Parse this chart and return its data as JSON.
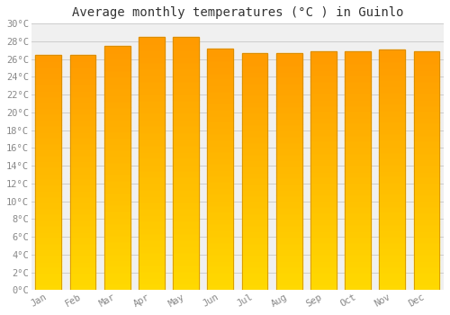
{
  "title": "Average monthly temperatures (°C ) in Guinlo",
  "months": [
    "Jan",
    "Feb",
    "Mar",
    "Apr",
    "May",
    "Jun",
    "Jul",
    "Aug",
    "Sep",
    "Oct",
    "Nov",
    "Dec"
  ],
  "temperatures": [
    26.5,
    26.5,
    27.5,
    28.5,
    28.5,
    27.2,
    26.7,
    26.7,
    26.9,
    26.9,
    27.1,
    26.9
  ],
  "bar_color_main": "#FFA500",
  "bar_color_light": "#FFD700",
  "bar_edge_color": "#CC8800",
  "background_color": "#FFFFFF",
  "plot_bg_color": "#F0F0F0",
  "grid_color": "#CCCCCC",
  "ylim": [
    0,
    30
  ],
  "yticks": [
    0,
    2,
    4,
    6,
    8,
    10,
    12,
    14,
    16,
    18,
    20,
    22,
    24,
    26,
    28,
    30
  ],
  "tick_label_color": "#888888",
  "title_color": "#333333",
  "title_fontsize": 10,
  "tick_fontsize": 7.5,
  "bar_width": 0.75
}
